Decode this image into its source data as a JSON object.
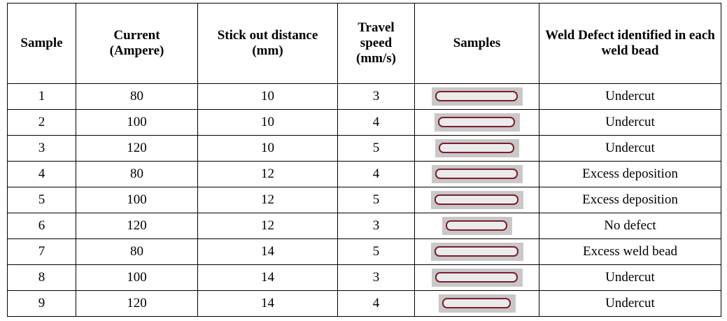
{
  "table": {
    "header": [
      "Sample",
      "Current (Ampere)",
      "Stick out distance (mm)",
      "Travel speed (mm/s)",
      "Samples",
      "Weld Defect identified in each weld bead"
    ],
    "rows": [
      {
        "sample": 1,
        "current": 80,
        "stick_out": 10,
        "travel_speed": 3,
        "defect": "Undercut"
      },
      {
        "sample": 2,
        "current": 100,
        "stick_out": 10,
        "travel_speed": 4,
        "defect": "Undercut"
      },
      {
        "sample": 3,
        "current": 120,
        "stick_out": 10,
        "travel_speed": 5,
        "defect": "Undercut"
      },
      {
        "sample": 4,
        "current": 80,
        "stick_out": 12,
        "travel_speed": 4,
        "defect": "Excess deposition"
      },
      {
        "sample": 5,
        "current": 100,
        "stick_out": 12,
        "travel_speed": 5,
        "defect": "Excess deposition"
      },
      {
        "sample": 6,
        "current": 120,
        "stick_out": 12,
        "travel_speed": 3,
        "defect": "No defect"
      },
      {
        "sample": 7,
        "current": 80,
        "stick_out": 14,
        "travel_speed": 5,
        "defect": "Excess weld bead"
      },
      {
        "sample": 8,
        "current": 100,
        "stick_out": 14,
        "travel_speed": 3,
        "defect": "Undercut"
      },
      {
        "sample": 9,
        "current": 120,
        "stick_out": 14,
        "travel_speed": 4,
        "defect": "Undercut"
      }
    ]
  }
}
